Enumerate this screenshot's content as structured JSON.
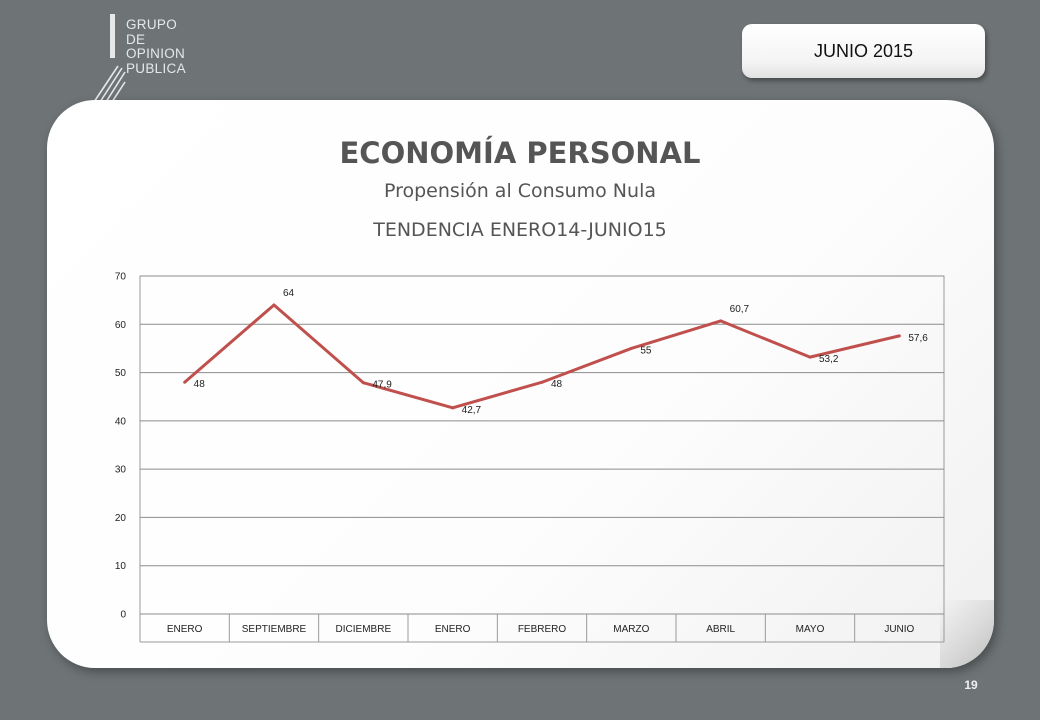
{
  "logo": {
    "lines": [
      "GRUPO",
      "DE",
      "OPINION",
      "PUBLICA"
    ]
  },
  "date_badge": "JUNIO 2015",
  "page_number": "19",
  "chart_data": {
    "type": "line",
    "title": "ECONOMÍA PERSONAL",
    "subtitle": "Propensión al Consumo Nula",
    "subtitle2": "TENDENCIA ENERO14-JUNIO15",
    "categories": [
      "ENERO",
      "SEPTIEMBRE",
      "DICIEMBRE",
      "ENERO",
      "FEBRERO",
      "MARZO",
      "ABRIL",
      "MAYO",
      "JUNIO"
    ],
    "series": [
      {
        "values": [
          48,
          64,
          47.9,
          42.7,
          48,
          55,
          60.7,
          53.2,
          57.6
        ],
        "labels": [
          "48",
          "64",
          "47,9",
          "42,7",
          "48",
          "55",
          "60,7",
          "53,2",
          "57,6"
        ],
        "color": "#c0504d"
      }
    ],
    "ylim": [
      0,
      70
    ],
    "yticks": [
      "0",
      "10",
      "20",
      "30",
      "40",
      "50",
      "60",
      "70"
    ],
    "grid": true,
    "legend": "none"
  }
}
